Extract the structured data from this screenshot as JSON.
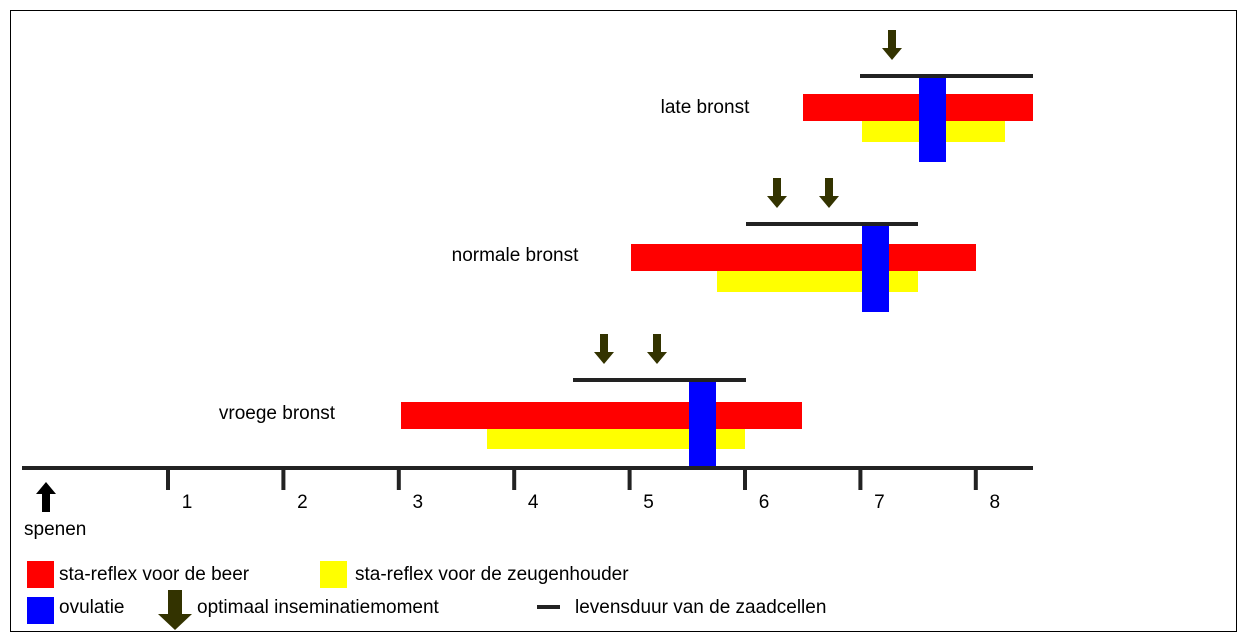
{
  "rows": [
    {
      "label": "late bronst"
    },
    {
      "label": "normale bronst"
    },
    {
      "label": "vroege bronst"
    }
  ],
  "axis": {
    "ticks": [
      "1",
      "2",
      "3",
      "4",
      "5",
      "6",
      "7",
      "8"
    ],
    "start_label": "spenen"
  },
  "legend": {
    "red": "sta-reflex voor de beer",
    "yellow": "sta-reflex  voor de zeugenhouder",
    "blue": "ovulatie",
    "arrow": "optimaal inseminatiemoment",
    "line": "levensduur van de zaadcellen"
  }
}
